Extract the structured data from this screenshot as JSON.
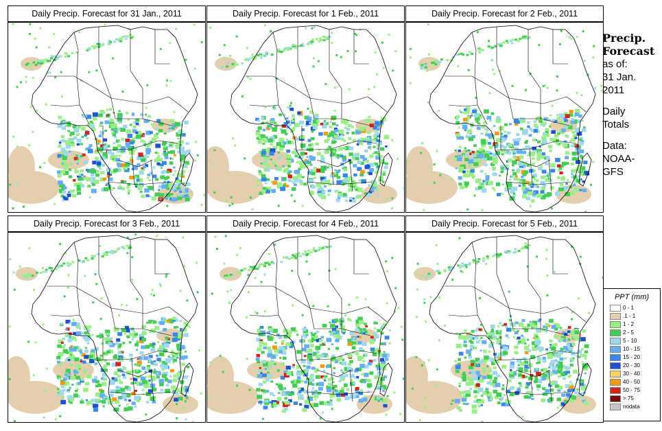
{
  "panels": [
    {
      "title": "Daily Precip. Forecast for  31 Jan., 2011"
    },
    {
      "title": "Daily Precip. Forecast for  1 Feb., 2011"
    },
    {
      "title": "Daily Precip. Forecast for  2 Feb., 2011"
    },
    {
      "title": "Daily Precip. Forecast for  3 Feb., 2011"
    },
    {
      "title": "Daily Precip. Forecast for  4 Feb., 2011"
    },
    {
      "title": "Daily Precip. Forecast for  5 Feb., 2011"
    }
  ],
  "sidebar": {
    "title_line1": "Precip.",
    "title_line2": "Forecast",
    "asof_label": "as of:",
    "date_line1": "31 Jan.",
    "date_line2": "2011",
    "totals_line1": "Daily",
    "totals_line2": "Totals",
    "data_line1": "Data:",
    "data_line2": "NOAA-",
    "data_line3": "GFS"
  },
  "legend": {
    "title": "PPT (mm)",
    "items": [
      {
        "label": "0 - 1",
        "color": "#ffffff"
      },
      {
        "label": ".1 - 1",
        "color": "#e3cfae"
      },
      {
        "label": "1 - 2",
        "color": "#99ee88"
      },
      {
        "label": "2 - 5",
        "color": "#44cc55"
      },
      {
        "label": "5 - 10",
        "color": "#9ed8f0"
      },
      {
        "label": "10 - 15",
        "color": "#66aef0"
      },
      {
        "label": "15 - 20",
        "color": "#3a86e8"
      },
      {
        "label": "20 - 30",
        "color": "#1f50d0"
      },
      {
        "label": "30 - 40",
        "color": "#f4d460"
      },
      {
        "label": "40 - 50",
        "color": "#f29a18"
      },
      {
        "label": "50 - 75",
        "color": "#d42418"
      },
      {
        "label": "> 75",
        "color": "#7a0c0c"
      },
      {
        "label": "nodata",
        "color": "#c8c8c8"
      }
    ]
  }
}
